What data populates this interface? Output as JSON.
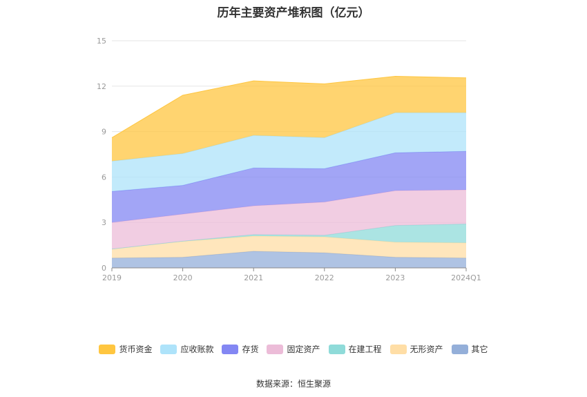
{
  "chart_data": {
    "type": "area",
    "stacked": true,
    "title": "历年主要资产堆积图（亿元）",
    "categories": [
      "2019",
      "2020",
      "2021",
      "2022",
      "2023",
      "2024Q1"
    ],
    "ylim": [
      0,
      15
    ],
    "yticks": [
      0,
      3,
      6,
      9,
      12,
      15
    ],
    "grid": true,
    "legend_position": "bottom",
    "series": [
      {
        "name": "其它",
        "color": "#94afd9",
        "values": [
          0.65,
          0.7,
          1.1,
          1.0,
          0.7,
          0.65
        ]
      },
      {
        "name": "无形资产",
        "color": "#ffdea6",
        "values": [
          0.6,
          1.05,
          1.0,
          1.05,
          1.0,
          1.0
        ]
      },
      {
        "name": "在建工程",
        "color": "#8fdbd9",
        "values": [
          0.0,
          0.02,
          0.1,
          0.1,
          1.1,
          1.25
        ]
      },
      {
        "name": "固定资产",
        "color": "#ecbcd8",
        "values": [
          1.75,
          1.78,
          1.9,
          2.2,
          2.3,
          2.25
        ]
      },
      {
        "name": "存货",
        "color": "#8387f3",
        "values": [
          2.05,
          1.9,
          2.5,
          2.2,
          2.5,
          2.55
        ]
      },
      {
        "name": "应收账款",
        "color": "#aee3fa",
        "values": [
          2.0,
          2.1,
          2.15,
          2.05,
          2.65,
          2.55
        ]
      },
      {
        "name": "货币资金",
        "color": "#ffc640",
        "values": [
          1.55,
          3.85,
          3.6,
          3.55,
          2.4,
          2.3
        ]
      }
    ]
  },
  "legend_order": [
    "货币资金",
    "应收账款",
    "存货",
    "固定资产",
    "在建工程",
    "无形资产",
    "其它"
  ],
  "source": "数据来源：恒生聚源"
}
